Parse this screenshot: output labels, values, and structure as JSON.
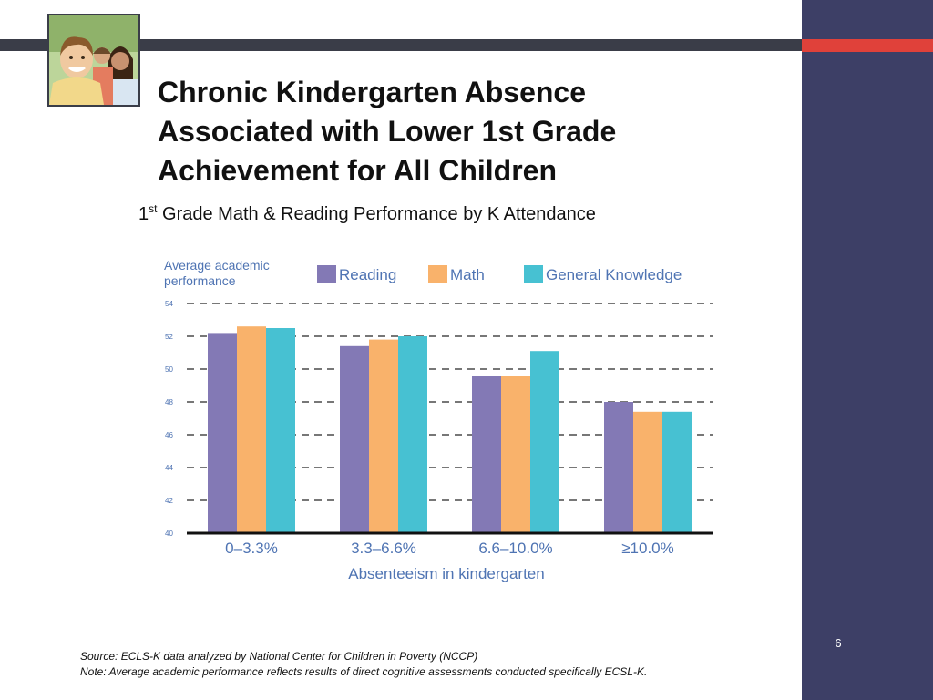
{
  "slide": {
    "title_lines": [
      "Chronic Kindergarten Absence",
      "Associated with Lower 1st Grade",
      "Achievement for All Children"
    ],
    "subtitle_prefix": "1",
    "subtitle_sup": "st",
    "subtitle_rest": " Grade Math & Reading Performance by K Attendance",
    "source_line": "Source: ECLS-K  data analyzed by National Center for Children in Poverty (NCCP)",
    "note_line": " Note: Average academic performance reflects results of direct cognitive assessments conducted specifically  ECSL-K.",
    "page_number": "6"
  },
  "colors": {
    "reading": "#8379b5",
    "math": "#f9b26b",
    "general_knowledge": "#47c1d2",
    "axis_text": "#4f74b3",
    "panel": "#3d3f66",
    "accent": "#e0413a"
  },
  "chart_data": {
    "type": "bar",
    "title": "",
    "ylabel_lines": [
      "Average academic",
      "performance"
    ],
    "xlabel": "Absenteeism in kindergarten",
    "ylim": [
      40,
      54
    ],
    "yticks": [
      40,
      42,
      44,
      46,
      48,
      50,
      52,
      54
    ],
    "grid": "dashed",
    "legend_position": "top",
    "categories": [
      "0–3.3%",
      "3.3–6.6%",
      "6.6–10.0%",
      "≥10.0%"
    ],
    "series": [
      {
        "name": "Reading",
        "color": "#8379b5",
        "values": [
          52.2,
          51.4,
          49.6,
          48.0
        ]
      },
      {
        "name": "Math",
        "color": "#f9b26b",
        "values": [
          52.6,
          51.8,
          49.6,
          47.4
        ]
      },
      {
        "name": "General Knowledge",
        "color": "#47c1d2",
        "values": [
          52.5,
          52.0,
          51.1,
          47.4
        ]
      }
    ]
  }
}
